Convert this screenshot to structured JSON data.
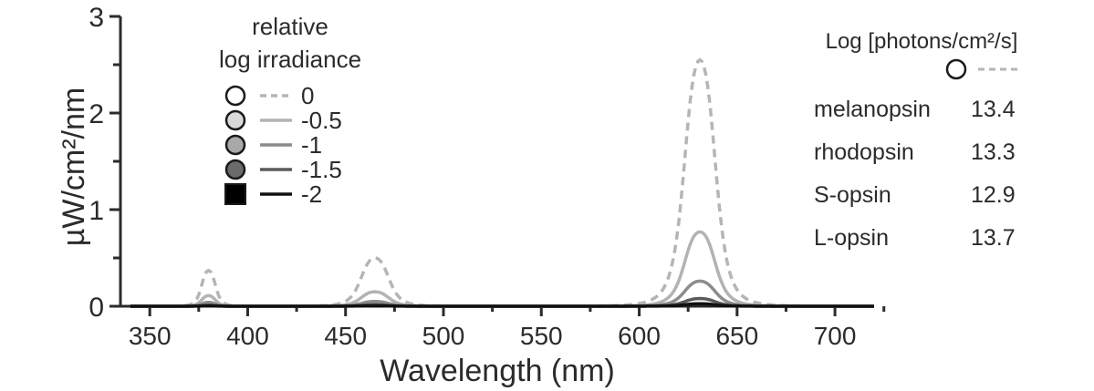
{
  "chart_data": {
    "type": "line",
    "ylabel": "µW/cm²/nm",
    "xlabel": "Wavelength (nm)",
    "xlim": [
      335,
      720
    ],
    "ylim": [
      0,
      3
    ],
    "xticks": [
      350,
      400,
      450,
      500,
      550,
      600,
      650,
      700
    ],
    "yticks": [
      0,
      1,
      2,
      3
    ],
    "x_minor_step": 25,
    "y_minor_step": 0.5,
    "legend": {
      "title_line1": "relative",
      "title_line2": "log irradiance",
      "placement": "top-left"
    },
    "series": [
      {
        "name": "0",
        "marker": "circle",
        "fill": "#ffffff",
        "line_color": "#b5b5b5",
        "dashed": true,
        "peaks": [
          {
            "nm": 380,
            "value": 0.37
          },
          {
            "nm": 465,
            "value": 0.5
          },
          {
            "nm": 631,
            "value": 2.55
          }
        ]
      },
      {
        "name": "-0.5",
        "marker": "circle",
        "fill": "#d9d9d9",
        "line_color": "#b3b3b3",
        "dashed": false,
        "peaks": [
          {
            "nm": 380,
            "value": 0.11
          },
          {
            "nm": 465,
            "value": 0.15
          },
          {
            "nm": 631,
            "value": 0.77
          }
        ]
      },
      {
        "name": "-1",
        "marker": "circle",
        "fill": "#a8a8a8",
        "line_color": "#8c8c8c",
        "dashed": false,
        "peaks": [
          {
            "nm": 380,
            "value": 0.04
          },
          {
            "nm": 465,
            "value": 0.05
          },
          {
            "nm": 631,
            "value": 0.26
          }
        ]
      },
      {
        "name": "-1.5",
        "marker": "circle",
        "fill": "#6b6b6b",
        "line_color": "#5a5a5a",
        "dashed": false,
        "peaks": [
          {
            "nm": 380,
            "value": 0.012
          },
          {
            "nm": 465,
            "value": 0.016
          },
          {
            "nm": 631,
            "value": 0.08
          }
        ]
      },
      {
        "name": "-2",
        "marker": "square",
        "fill": "#000000",
        "line_color": "#111111",
        "dashed": false,
        "peaks": [
          {
            "nm": 380,
            "value": 0.004
          },
          {
            "nm": 465,
            "value": 0.005
          },
          {
            "nm": 631,
            "value": 0.026
          }
        ]
      }
    ],
    "table": {
      "title": "Log [photons/cm²/s]",
      "header_line_color": "#b5b5b5",
      "rows": [
        {
          "label": "melanopsin",
          "value": "13.4"
        },
        {
          "label": "rhodopsin",
          "value": "13.3"
        },
        {
          "label": "S-opsin",
          "value": "12.9"
        },
        {
          "label": "L-opsin",
          "value": "13.7"
        }
      ]
    }
  }
}
